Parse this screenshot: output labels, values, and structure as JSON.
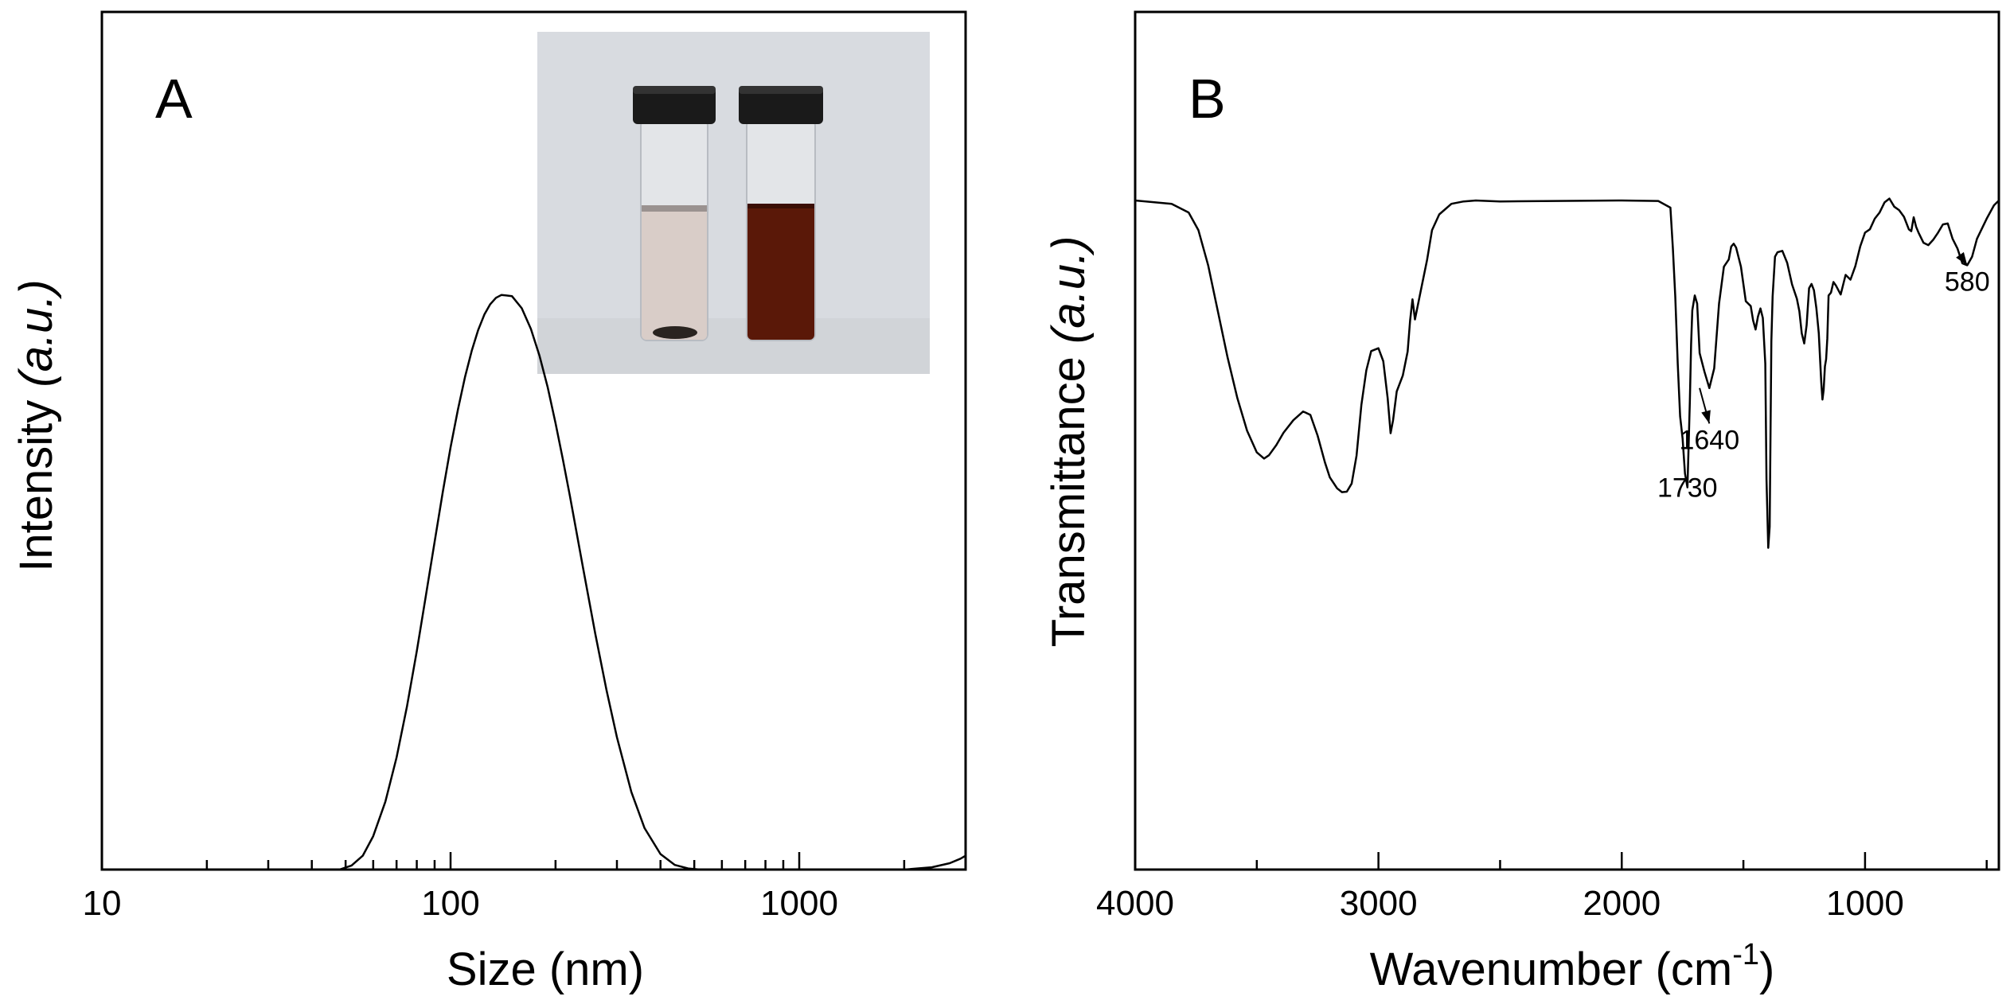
{
  "chart_data": [
    {
      "type": "line",
      "panel_label": "A",
      "title": "",
      "xlabel": "Size (nm)",
      "ylabel_main": "Intensity",
      "ylabel_unit": "(a.u.)",
      "xscale": "log",
      "xlim": [
        10,
        3000
      ],
      "ylim": [
        0,
        100
      ],
      "x_ticks": [
        10,
        100,
        1000
      ],
      "x_tick_labels": [
        "10",
        "100",
        "1000"
      ],
      "grid": false,
      "legend": "none",
      "inset": {
        "kind": "photo",
        "placement": "top-right",
        "subject": "two vials: clear liquid with dark sediment, and dark red-brown dispersion",
        "colors": {
          "background": "#d8dbe0",
          "cap": "#1a1a1a",
          "clear_liquid": "#d9cdc8",
          "dark_liquid": "#5a1808",
          "sediment": "#2a2420"
        }
      },
      "series": [
        {
          "name": "Size distribution",
          "x": [
            40,
            48,
            52,
            56,
            60,
            65,
            70,
            75,
            80,
            85,
            90,
            95,
            100,
            105,
            110,
            115,
            120,
            125,
            130,
            135,
            140,
            150,
            160,
            170,
            180,
            190,
            200,
            210,
            220,
            240,
            260,
            280,
            300,
            330,
            360,
            400,
            440,
            480,
            520,
            600,
            800,
            1000,
            1500,
            2000,
            2400,
            2700,
            2900,
            3000
          ],
          "y": [
            0,
            0,
            0.7,
            2.4,
            5.8,
            11.8,
            19.5,
            28.4,
            38,
            47.7,
            57,
            65.7,
            73.4,
            80,
            85.6,
            90.2,
            93.8,
            96.5,
            98.3,
            99.4,
            99.9,
            99.7,
            97.6,
            94,
            89.3,
            83.8,
            77.6,
            71.3,
            64.9,
            52.4,
            41,
            31.2,
            23,
            13.5,
            7.2,
            2.7,
            0.8,
            0.2,
            0,
            0,
            0,
            0,
            0,
            0,
            0.4,
            1.1,
            1.9,
            2.4
          ]
        }
      ]
    },
    {
      "type": "line",
      "panel_label": "B",
      "title": "",
      "xlabel_main": "Wavenumber (cm",
      "xlabel_sup": "-1",
      "xlabel_close": ")",
      "ylabel_main": "Transmittance",
      "ylabel_unit": "(a.u.)",
      "xlim": [
        4000,
        450
      ],
      "ylim": [
        0,
        100
      ],
      "x_ticks": [
        4000,
        3000,
        2000,
        1000
      ],
      "x_tick_labels": [
        "4000",
        "3000",
        "2000",
        "1000"
      ],
      "grid": false,
      "legend": "none",
      "annotations": [
        {
          "text": "1730",
          "x": 1730,
          "label_y": 38.2,
          "has_arrow": false
        },
        {
          "text": "1640",
          "x": 1640,
          "label_y": 48.2,
          "has_arrow": true,
          "arrow_from_x": 1680,
          "arrow_from_y": 60.9
        },
        {
          "text": "580",
          "x": 580,
          "label_y": 81.2,
          "has_arrow": true,
          "arrow_from_x": 605,
          "arrow_from_y": 88.3
        }
      ],
      "series": [
        {
          "name": "FTIR spectrum",
          "x": [
            4000,
            3850,
            3780,
            3740,
            3700,
            3660,
            3620,
            3580,
            3540,
            3500,
            3470,
            3450,
            3420,
            3390,
            3350,
            3310,
            3300,
            3280,
            3250,
            3220,
            3200,
            3170,
            3150,
            3130,
            3110,
            3090,
            3070,
            3050,
            3030,
            3000,
            2980,
            2962,
            2950,
            2940,
            2925,
            2900,
            2880,
            2870,
            2860,
            2850,
            2830,
            2800,
            2780,
            2750,
            2700,
            2650,
            2600,
            2500,
            2000,
            1850,
            1800,
            1790,
            1780,
            1770,
            1760,
            1750,
            1740,
            1730,
            1720,
            1715,
            1710,
            1700,
            1690,
            1680,
            1660,
            1640,
            1620,
            1600,
            1580,
            1560,
            1550,
            1540,
            1530,
            1510,
            1490,
            1470,
            1460,
            1450,
            1440,
            1430,
            1420,
            1410,
            1405,
            1398,
            1392,
            1385,
            1380,
            1370,
            1360,
            1340,
            1320,
            1300,
            1280,
            1270,
            1260,
            1250,
            1240,
            1230,
            1220,
            1210,
            1200,
            1190,
            1180,
            1175,
            1170,
            1165,
            1160,
            1155,
            1150,
            1140,
            1130,
            1120,
            1100,
            1080,
            1060,
            1040,
            1020,
            1000,
            980,
            960,
            940,
            920,
            900,
            880,
            860,
            840,
            820,
            810,
            800,
            790,
            780,
            760,
            740,
            720,
            700,
            680,
            660,
            640,
            620,
            600,
            580,
            560,
            540,
            500,
            470,
            450
          ],
          "y": [
            100,
            99.3,
            97.5,
            93.8,
            86.5,
            76.9,
            67.3,
            58.8,
            52,
            47.5,
            46.2,
            46.9,
            49,
            51.6,
            54.2,
            56,
            55.8,
            55.3,
            51,
            45.4,
            42.3,
            40,
            39.2,
            39.3,
            41,
            46.8,
            57.4,
            64.6,
            68.6,
            69.2,
            66.5,
            58.8,
            51.5,
            54.2,
            60.2,
            63.5,
            68.5,
            75,
            79.4,
            75.2,
            80.2,
            87.7,
            93.8,
            97.1,
            99.3,
            99.8,
            100,
            99.8,
            100,
            99.9,
            98.5,
            90,
            80,
            66,
            55,
            50.4,
            43.1,
            40.2,
            58,
            70,
            77.1,
            80.2,
            78.5,
            68.2,
            64.3,
            60.9,
            65,
            78.5,
            86.2,
            87.7,
            90.4,
            91,
            90.2,
            86.2,
            79,
            78,
            75,
            73.1,
            75.8,
            77.5,
            75.5,
            66,
            41.9,
            27.6,
            32,
            70.6,
            80,
            88.3,
            89.2,
            89.5,
            87,
            82.5,
            79.5,
            76.9,
            72.3,
            70.2,
            74,
            81.7,
            82.6,
            81.3,
            77.5,
            72.3,
            62.1,
            58.5,
            60.5,
            65.4,
            66.9,
            71.2,
            80.2,
            80.8,
            83,
            82.3,
            80.4,
            84.5,
            83.5,
            86.3,
            90.4,
            93.3,
            94,
            96.2,
            97.5,
            99.6,
            100.4,
            98.7,
            98,
            96.6,
            94,
            93.6,
            96.5,
            94.5,
            93.3,
            91.2,
            90.7,
            91.8,
            93.3,
            95,
            95.2,
            92,
            90,
            86.9,
            86.5,
            88.3,
            92,
            96.2,
            99,
            100
          ]
        }
      ]
    }
  ]
}
